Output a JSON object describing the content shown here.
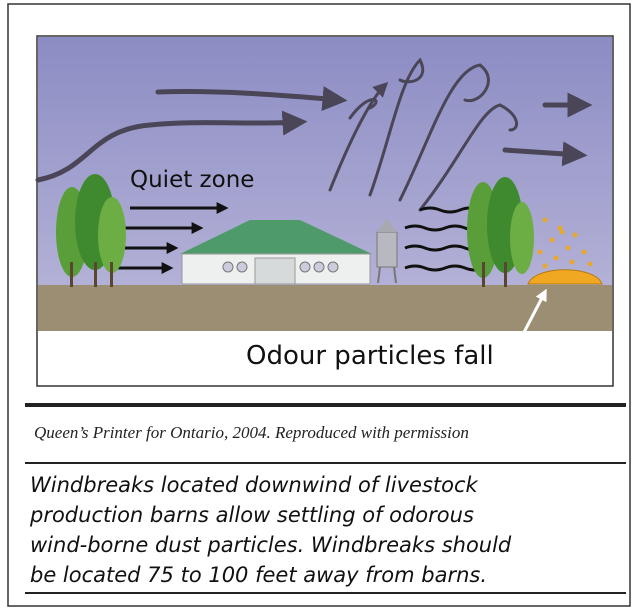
{
  "illustration": {
    "labels": [
      "Quiet zone",
      "Odour particles fall"
    ]
  },
  "credit": "Queen’s Printer for Ontario, 2004. Reproduced with permission",
  "caption": {
    "lines": [
      "Windbreaks located downwind of livestock",
      "production barns allow settling of odorous",
      "wind-borne dust particles. Windbreaks should",
      "be located 75 to 100 feet away from barns."
    ]
  }
}
